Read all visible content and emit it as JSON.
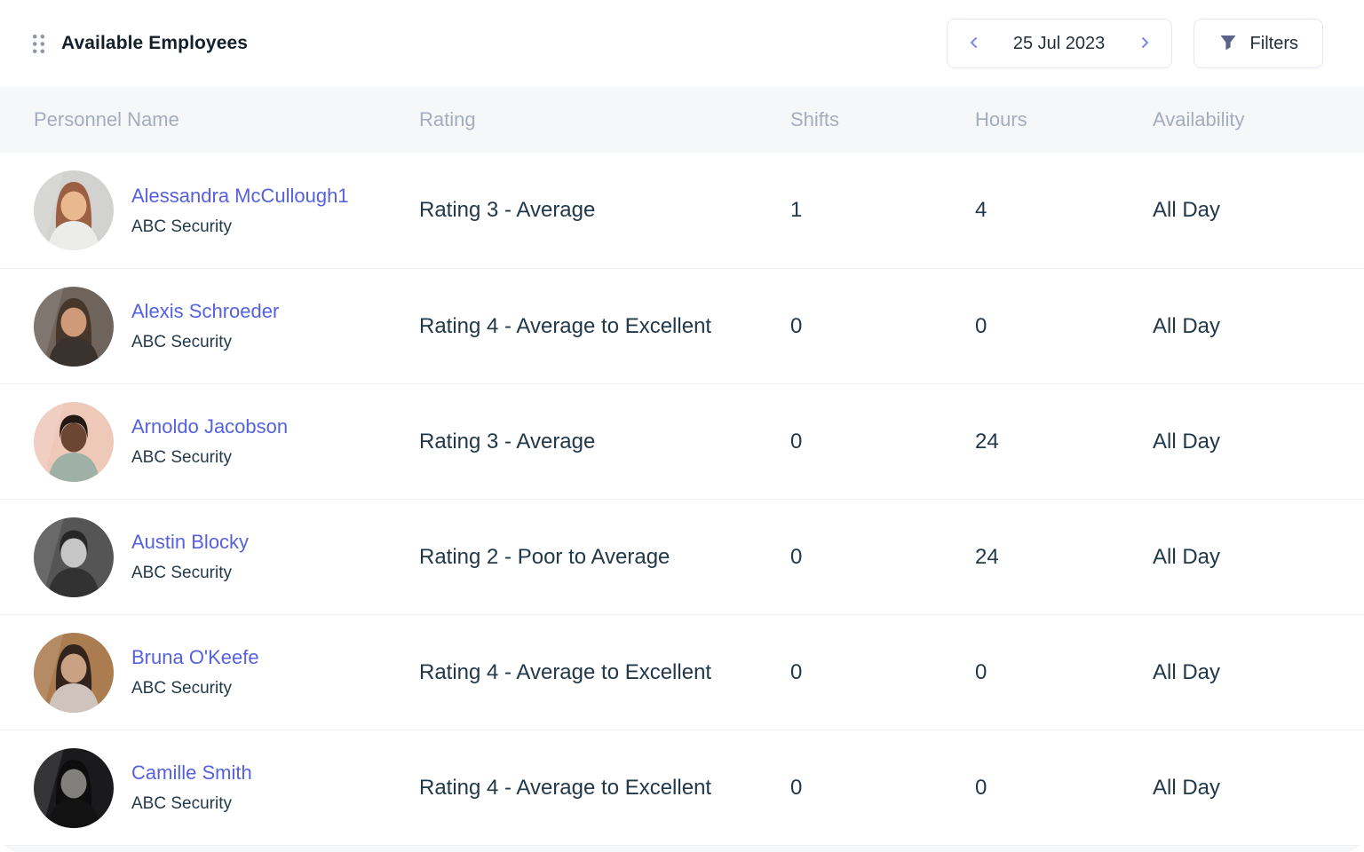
{
  "panel": {
    "title": "Available Employees",
    "drag_handle_icon": "grip-dots-icon",
    "date_nav": {
      "prev_icon": "chevron-left-icon",
      "next_icon": "chevron-right-icon",
      "date": "25 Jul 2023"
    },
    "filters": {
      "icon": "filter-funnel-icon",
      "label": "Filters"
    }
  },
  "colors": {
    "name_link": "#5661e0",
    "body_text": "#21384a",
    "header_text": "#a3adbd",
    "header_bg": "#f6f7f9",
    "divider": "#eef0f3",
    "chevron": "#7b87ea",
    "funnel_icon": "#5c6388",
    "button_border": "#e4e8f1"
  },
  "table": {
    "columns": [
      "Personnel Name",
      "Rating",
      "Shifts",
      "Hours",
      "Availability"
    ],
    "rows": [
      {
        "name": "Alessandra McCullough1",
        "company": "ABC Security",
        "rating": "Rating 3 - Average",
        "shifts": "1",
        "hours": "4",
        "availability": "All Day",
        "avatar": {
          "desc": "woman with auburn hair, white top, light background",
          "style": "long",
          "colors": {
            "bg": "#d2d3d1",
            "hair": "#9b5f41",
            "skin": "#eab88f",
            "top": "#ececea"
          }
        }
      },
      {
        "name": "Alexis Schroeder",
        "company": "ABC Security",
        "rating": "Rating 4 - Average to Excellent",
        "shifts": "0",
        "hours": "0",
        "availability": "All Day",
        "avatar": {
          "desc": "woman with long dark hair, moody warm light",
          "style": "long",
          "colors": {
            "bg": "#6e645c",
            "hair": "#47362a",
            "skin": "#cf9a78",
            "top": "#3a322c"
          }
        }
      },
      {
        "name": "Arnoldo Jacobson",
        "company": "ABC Security",
        "rating": "Rating 3 - Average",
        "shifts": "0",
        "hours": "24",
        "availability": "All Day",
        "avatar": {
          "desc": "man in sage shirt against salmon and white background",
          "style": "short",
          "colors": {
            "bg": "#eec9ba",
            "hair": "#241812",
            "skin": "#6b4733",
            "top": "#9fb0a6"
          }
        }
      },
      {
        "name": "Austin Blocky",
        "company": "ABC Security",
        "rating": "Rating 2 - Poor to Average",
        "shifts": "0",
        "hours": "24",
        "availability": "All Day",
        "avatar": {
          "desc": "grayscale photo of smiling man with glasses",
          "style": "short",
          "colors": {
            "bg": "#555555",
            "hair": "#262626",
            "skin": "#c6c6c6",
            "top": "#323232"
          }
        }
      },
      {
        "name": "Bruna O'Keefe",
        "company": "ABC Security",
        "rating": "Rating 4 - Average to Excellent",
        "shifts": "0",
        "hours": "0",
        "availability": "All Day",
        "avatar": {
          "desc": "woman writing in warm cafe with bokeh lights",
          "style": "long",
          "colors": {
            "bg": "#ab7c50",
            "hair": "#32241c",
            "skin": "#caa183",
            "top": "#cfc3bd"
          }
        }
      },
      {
        "name": "Camille Smith",
        "company": "ABC Security",
        "rating": "Rating 4 - Average to Excellent",
        "shifts": "0",
        "hours": "0",
        "availability": "All Day",
        "avatar": {
          "desc": "very dark black and white portrait of woman",
          "style": "long",
          "colors": {
            "bg": "#1a1a1c",
            "hair": "#0d0d0d",
            "skin": "#82807c",
            "top": "#121212"
          }
        }
      }
    ]
  }
}
